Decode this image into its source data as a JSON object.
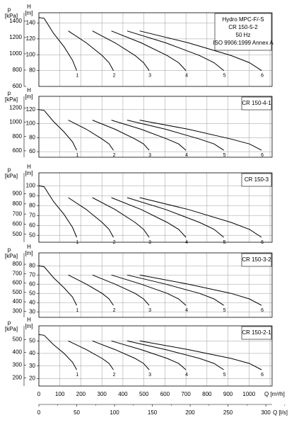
{
  "chart_data": [
    {
      "type": "line",
      "title": [
        "Hydro MPC-F/-S",
        "CR 150-5-2",
        "50 Hz",
        "ISO 9906:1999 Annex A"
      ],
      "ylabel": "H",
      "yunit": "[m]",
      "y2label": "p",
      "y2unit": "[kPa]",
      "xlim": [
        0,
        1110
      ],
      "xticks": [
        0,
        100,
        200,
        300,
        400,
        500,
        600,
        700,
        800,
        900,
        1000,
        1100
      ],
      "ylim": [
        60,
        153
      ],
      "yticks": [
        80,
        100,
        120,
        140
      ],
      "y2lim": [
        600,
        1504
      ],
      "y2ticks": [
        600,
        800,
        1000,
        1200,
        1400
      ],
      "grid": true,
      "series": [
        {
          "name": "1",
          "color": "#000000",
          "x": [
            0,
            25,
            70,
            120,
            160,
            180
          ],
          "values": [
            147,
            146,
            127,
            110,
            93,
            80
          ]
        },
        {
          "name": "2",
          "color": "#000000",
          "x": [
            140,
            226,
            301,
            334,
            355
          ],
          "values": [
            130,
            115,
            99,
            90,
            80
          ]
        },
        {
          "name": "3",
          "color": "#000000",
          "x": [
            255,
            363,
            458,
            498,
            525
          ],
          "values": [
            130,
            115,
            99,
            90,
            80
          ]
        },
        {
          "name": "4",
          "color": "#000000",
          "x": [
            345,
            487,
            611,
            665,
            700
          ],
          "values": [
            130,
            115,
            99,
            90,
            80
          ]
        },
        {
          "name": "5",
          "color": "#000000",
          "x": [
            420,
            604,
            765,
            834,
            880
          ],
          "values": [
            130,
            115,
            99,
            90,
            80
          ]
        },
        {
          "name": "6",
          "color": "#000000",
          "x": [
            480,
            712,
            915,
            1002,
            1060
          ],
          "values": [
            130,
            115,
            99,
            90,
            80
          ]
        }
      ]
    },
    {
      "type": "line",
      "title": [
        "CR 150-4-1"
      ],
      "ylabel": "H",
      "yunit": "[m]",
      "y2label": "p",
      "y2unit": "[kPa]",
      "xlim": [
        0,
        1110
      ],
      "xticks": [
        0,
        100,
        200,
        300,
        400,
        500,
        600,
        700,
        800,
        900,
        1000,
        1100
      ],
      "ylim": [
        52,
        139
      ],
      "yticks": [
        60,
        80,
        100,
        120
      ],
      "y2lim": [
        510,
        1362
      ],
      "y2ticks": [
        600,
        800,
        1000,
        1200
      ],
      "grid": true,
      "series": [
        {
          "name": "1",
          "color": "#000000",
          "x": [
            0,
            25,
            70,
            120,
            160,
            180
          ],
          "values": [
            120,
            119,
            103,
            88,
            74,
            62
          ]
        },
        {
          "name": "2",
          "color": "#000000",
          "x": [
            140,
            226,
            301,
            334,
            355
          ],
          "values": [
            105,
            92,
            78,
            71,
            62
          ]
        },
        {
          "name": "3",
          "color": "#000000",
          "x": [
            255,
            363,
            458,
            498,
            525
          ],
          "values": [
            105,
            92,
            78,
            71,
            62
          ]
        },
        {
          "name": "4",
          "color": "#000000",
          "x": [
            345,
            487,
            611,
            665,
            700
          ],
          "values": [
            105,
            92,
            78,
            71,
            62
          ]
        },
        {
          "name": "5",
          "color": "#000000",
          "x": [
            420,
            604,
            765,
            834,
            880
          ],
          "values": [
            105,
            92,
            78,
            71,
            62
          ]
        },
        {
          "name": "6",
          "color": "#000000",
          "x": [
            480,
            712,
            915,
            1002,
            1060
          ],
          "values": [
            105,
            92,
            78,
            71,
            62
          ]
        }
      ]
    },
    {
      "type": "line",
      "title": [
        "CR 150-3"
      ],
      "ylabel": "H",
      "yunit": "[m]",
      "y2label": "p",
      "y2unit": "[kPa]",
      "xlim": [
        0,
        1110
      ],
      "xticks": [
        0,
        100,
        200,
        300,
        400,
        500,
        600,
        700,
        800,
        900,
        1000,
        1100
      ],
      "ylim": [
        43,
        113
      ],
      "yticks": [
        50,
        60,
        70,
        80,
        90,
        100
      ],
      "y2lim": [
        421,
        1107
      ],
      "y2ticks": [
        500,
        600,
        700,
        800,
        900
      ],
      "grid": true,
      "series": [
        {
          "name": "1",
          "color": "#000000",
          "x": [
            0,
            25,
            70,
            120,
            160,
            180
          ],
          "values": [
            100,
            99,
            84,
            71,
            58,
            48
          ]
        },
        {
          "name": "2",
          "color": "#000000",
          "x": [
            140,
            226,
            301,
            334,
            355
          ],
          "values": [
            88,
            76,
            63,
            56,
            48
          ]
        },
        {
          "name": "3",
          "color": "#000000",
          "x": [
            255,
            363,
            458,
            498,
            525
          ],
          "values": [
            88,
            76,
            63,
            56,
            48
          ]
        },
        {
          "name": "4",
          "color": "#000000",
          "x": [
            345,
            487,
            611,
            665,
            700
          ],
          "values": [
            88,
            76,
            63,
            56,
            48
          ]
        },
        {
          "name": "5",
          "color": "#000000",
          "x": [
            420,
            604,
            765,
            834,
            880
          ],
          "values": [
            88,
            76,
            63,
            56,
            48
          ]
        },
        {
          "name": "6",
          "color": "#000000",
          "x": [
            480,
            712,
            915,
            1002,
            1060
          ],
          "values": [
            88,
            76,
            63,
            56,
            48
          ]
        }
      ]
    },
    {
      "type": "line",
      "title": [
        "CR 150-3-2"
      ],
      "ylabel": "H",
      "yunit": "[m]",
      "y2label": "p",
      "y2unit": "[kPa]",
      "xlim": [
        0,
        1110
      ],
      "xticks": [
        0,
        100,
        200,
        300,
        400,
        500,
        600,
        700,
        800,
        900,
        1000,
        1100
      ],
      "ylim": [
        24,
        94
      ],
      "yticks": [
        30,
        40,
        50,
        60,
        70,
        80
      ],
      "y2lim": [
        235,
        921
      ],
      "y2ticks": [
        300,
        400,
        500,
        600,
        700,
        800
      ],
      "grid": true,
      "series": [
        {
          "name": "1",
          "color": "#000000",
          "x": [
            0,
            25,
            70,
            120,
            160,
            180
          ],
          "values": [
            80,
            79,
            67,
            56,
            46,
            37
          ]
        },
        {
          "name": "2",
          "color": "#000000",
          "x": [
            140,
            226,
            301,
            334,
            355
          ],
          "values": [
            70,
            60,
            50,
            44,
            37
          ]
        },
        {
          "name": "3",
          "color": "#000000",
          "x": [
            255,
            363,
            458,
            498,
            525
          ],
          "values": [
            70,
            60,
            50,
            44,
            37
          ]
        },
        {
          "name": "4",
          "color": "#000000",
          "x": [
            345,
            487,
            611,
            665,
            700
          ],
          "values": [
            70,
            60,
            50,
            44,
            37
          ]
        },
        {
          "name": "5",
          "color": "#000000",
          "x": [
            420,
            604,
            765,
            834,
            880
          ],
          "values": [
            70,
            60,
            50,
            44,
            37
          ]
        },
        {
          "name": "6",
          "color": "#000000",
          "x": [
            480,
            712,
            915,
            1002,
            1060
          ],
          "values": [
            70,
            60,
            50,
            44,
            37
          ]
        }
      ]
    },
    {
      "type": "line",
      "title": [
        "CR 150-2-1"
      ],
      "ylabel": "H",
      "yunit": "[m]",
      "y2label": "p",
      "y2unit": "[kPa]",
      "xlim": [
        0,
        1110
      ],
      "xticks": [
        0,
        100,
        200,
        300,
        400,
        500,
        600,
        700,
        800,
        900,
        1000,
        1100
      ],
      "xlabel": "Q [m³/h]",
      "x2lim": [
        0,
        308.3
      ],
      "x2ticks": [
        0,
        50,
        100,
        150,
        200,
        250,
        300
      ],
      "x2label": "Q [l/s]",
      "ylim": [
        14,
        62
      ],
      "yticks": [
        20,
        30,
        40,
        50
      ],
      "y2lim": [
        137,
        608
      ],
      "y2ticks": [
        200,
        300,
        400,
        500
      ],
      "grid": true,
      "series": [
        {
          "name": "1",
          "color": "#000000",
          "x": [
            0,
            25,
            70,
            120,
            160,
            180
          ],
          "values": [
            55,
            54.5,
            47,
            40,
            33,
            27
          ]
        },
        {
          "name": "2",
          "color": "#000000",
          "x": [
            140,
            226,
            301,
            334,
            355
          ],
          "values": [
            50,
            43,
            36,
            32,
            27
          ]
        },
        {
          "name": "3",
          "color": "#000000",
          "x": [
            255,
            363,
            458,
            498,
            525
          ],
          "values": [
            50,
            43,
            36,
            32,
            27
          ]
        },
        {
          "name": "4",
          "color": "#000000",
          "x": [
            345,
            487,
            611,
            665,
            700
          ],
          "values": [
            50,
            43,
            36,
            32,
            27
          ]
        },
        {
          "name": "5",
          "color": "#000000",
          "x": [
            420,
            604,
            765,
            834,
            880
          ],
          "values": [
            50,
            43,
            36,
            32,
            27
          ]
        },
        {
          "name": "6",
          "color": "#000000",
          "x": [
            480,
            712,
            915,
            1002,
            1060
          ],
          "values": [
            50,
            43,
            36,
            32,
            27
          ]
        }
      ]
    }
  ]
}
